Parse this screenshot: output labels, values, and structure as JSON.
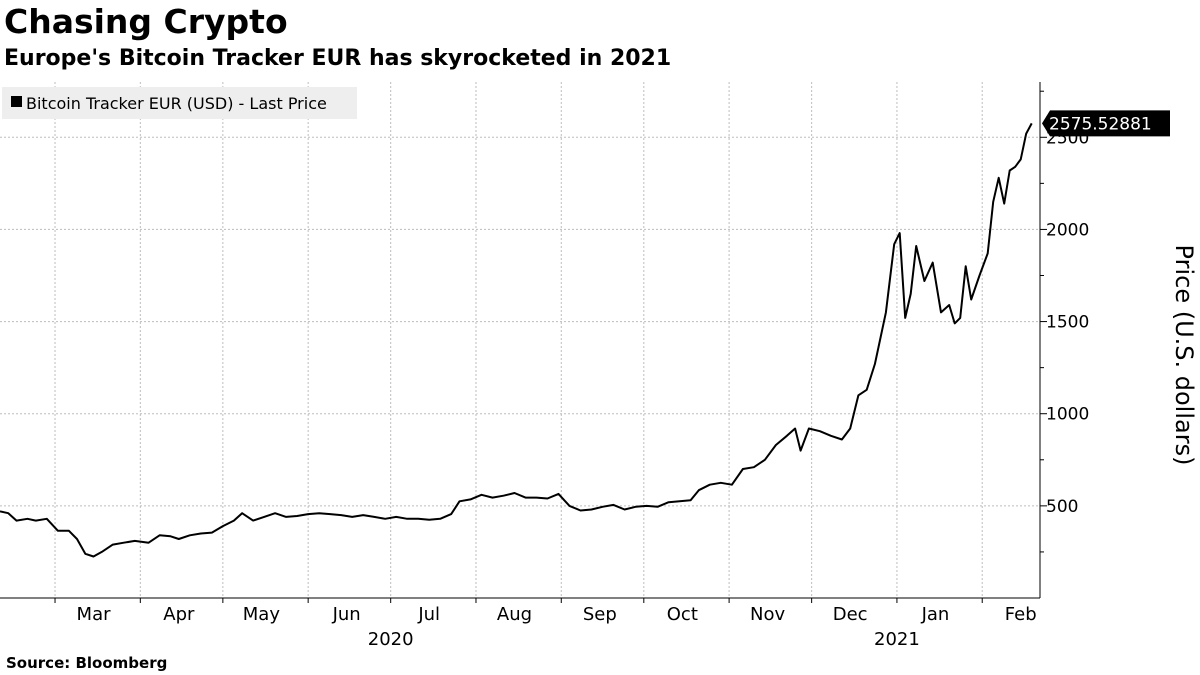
{
  "header": {
    "title": "Chasing Crypto",
    "subtitle": "Europe's Bitcoin Tracker EUR has skyrocketed in 2021"
  },
  "footer": {
    "source": "Source: Bloomberg"
  },
  "colors": {
    "line": "#000000",
    "grid": "#bdbdbd",
    "legend_bg": "#eeeeee",
    "last_price_badge": "#000000"
  },
  "chart_data": {
    "type": "line",
    "title": "",
    "xlabel": "",
    "ylabel": "Price (U.S. dollars)",
    "ylim": [
      0,
      2800
    ],
    "xlim": [
      "2020-02-10",
      "2021-02-22"
    ],
    "y_ticks": [
      500,
      1000,
      1500,
      2000,
      2500
    ],
    "x_tick_labels": [
      {
        "label": "Mar",
        "date": "2020-03-01"
      },
      {
        "label": "Apr",
        "date": "2020-04-01"
      },
      {
        "label": "May",
        "date": "2020-05-01"
      },
      {
        "label": "Jun",
        "date": "2020-06-01"
      },
      {
        "label": "Jul",
        "date": "2020-07-01"
      },
      {
        "label": "Aug",
        "date": "2020-08-01"
      },
      {
        "label": "Sep",
        "date": "2020-09-01"
      },
      {
        "label": "Oct",
        "date": "2020-10-01"
      },
      {
        "label": "Nov",
        "date": "2020-11-01"
      },
      {
        "label": "Dec",
        "date": "2020-12-01"
      },
      {
        "label": "Jan",
        "date": "2021-01-01"
      },
      {
        "label": "Feb",
        "date": "2021-02-01"
      }
    ],
    "year_labels": [
      {
        "label": "2020",
        "date": "2020-07-01"
      },
      {
        "label": "2021",
        "date": "2021-01-01"
      }
    ],
    "grid": true,
    "legend_position": "top-left",
    "last_price_label": "2575.52881",
    "series": [
      {
        "name": "Bitcoin Tracker EUR (USD) - Last Price",
        "color": "#000000",
        "points": [
          [
            "2020-02-10",
            470
          ],
          [
            "2020-02-13",
            460
          ],
          [
            "2020-02-16",
            420
          ],
          [
            "2020-02-20",
            430
          ],
          [
            "2020-02-23",
            420
          ],
          [
            "2020-02-27",
            430
          ],
          [
            "2020-03-02",
            365
          ],
          [
            "2020-03-06",
            365
          ],
          [
            "2020-03-09",
            320
          ],
          [
            "2020-03-12",
            240
          ],
          [
            "2020-03-15",
            225
          ],
          [
            "2020-03-18",
            250
          ],
          [
            "2020-03-22",
            290
          ],
          [
            "2020-03-26",
            300
          ],
          [
            "2020-03-30",
            310
          ],
          [
            "2020-04-04",
            300
          ],
          [
            "2020-04-08",
            340
          ],
          [
            "2020-04-12",
            335
          ],
          [
            "2020-04-15",
            320
          ],
          [
            "2020-04-19",
            340
          ],
          [
            "2020-04-23",
            350
          ],
          [
            "2020-04-27",
            355
          ],
          [
            "2020-05-01",
            390
          ],
          [
            "2020-05-05",
            420
          ],
          [
            "2020-05-08",
            460
          ],
          [
            "2020-05-12",
            420
          ],
          [
            "2020-05-16",
            440
          ],
          [
            "2020-05-20",
            460
          ],
          [
            "2020-05-24",
            440
          ],
          [
            "2020-05-28",
            445
          ],
          [
            "2020-06-01",
            455
          ],
          [
            "2020-06-05",
            460
          ],
          [
            "2020-06-09",
            455
          ],
          [
            "2020-06-13",
            450
          ],
          [
            "2020-06-17",
            440
          ],
          [
            "2020-06-21",
            450
          ],
          [
            "2020-06-25",
            440
          ],
          [
            "2020-06-29",
            430
          ],
          [
            "2020-07-03",
            440
          ],
          [
            "2020-07-07",
            430
          ],
          [
            "2020-07-11",
            430
          ],
          [
            "2020-07-15",
            425
          ],
          [
            "2020-07-19",
            430
          ],
          [
            "2020-07-23",
            455
          ],
          [
            "2020-07-26",
            525
          ],
          [
            "2020-07-30",
            535
          ],
          [
            "2020-08-03",
            560
          ],
          [
            "2020-08-07",
            545
          ],
          [
            "2020-08-11",
            555
          ],
          [
            "2020-08-15",
            570
          ],
          [
            "2020-08-19",
            545
          ],
          [
            "2020-08-23",
            545
          ],
          [
            "2020-08-27",
            540
          ],
          [
            "2020-08-31",
            565
          ],
          [
            "2020-09-04",
            500
          ],
          [
            "2020-09-08",
            475
          ],
          [
            "2020-09-12",
            480
          ],
          [
            "2020-09-16",
            495
          ],
          [
            "2020-09-20",
            505
          ],
          [
            "2020-09-24",
            480
          ],
          [
            "2020-09-28",
            495
          ],
          [
            "2020-10-02",
            500
          ],
          [
            "2020-10-06",
            495
          ],
          [
            "2020-10-10",
            520
          ],
          [
            "2020-10-14",
            525
          ],
          [
            "2020-10-18",
            530
          ],
          [
            "2020-10-21",
            585
          ],
          [
            "2020-10-25",
            615
          ],
          [
            "2020-10-29",
            625
          ],
          [
            "2020-11-02",
            615
          ],
          [
            "2020-11-06",
            700
          ],
          [
            "2020-11-10",
            710
          ],
          [
            "2020-11-14",
            750
          ],
          [
            "2020-11-18",
            830
          ],
          [
            "2020-11-22",
            880
          ],
          [
            "2020-11-25",
            920
          ],
          [
            "2020-11-27",
            800
          ],
          [
            "2020-11-30",
            920
          ],
          [
            "2020-12-04",
            905
          ],
          [
            "2020-12-08",
            880
          ],
          [
            "2020-12-12",
            860
          ],
          [
            "2020-12-15",
            920
          ],
          [
            "2020-12-18",
            1100
          ],
          [
            "2020-12-21",
            1130
          ],
          [
            "2020-12-24",
            1270
          ],
          [
            "2020-12-28",
            1550
          ],
          [
            "2020-12-31",
            1920
          ],
          [
            "2021-01-02",
            1980
          ],
          [
            "2021-01-04",
            1520
          ],
          [
            "2021-01-06",
            1650
          ],
          [
            "2021-01-08",
            1910
          ],
          [
            "2021-01-11",
            1720
          ],
          [
            "2021-01-14",
            1820
          ],
          [
            "2021-01-17",
            1550
          ],
          [
            "2021-01-20",
            1590
          ],
          [
            "2021-01-22",
            1490
          ],
          [
            "2021-01-24",
            1520
          ],
          [
            "2021-01-26",
            1800
          ],
          [
            "2021-01-28",
            1620
          ],
          [
            "2021-01-31",
            1750
          ],
          [
            "2021-02-03",
            1870
          ],
          [
            "2021-02-05",
            2150
          ],
          [
            "2021-02-07",
            2280
          ],
          [
            "2021-02-09",
            2140
          ],
          [
            "2021-02-11",
            2320
          ],
          [
            "2021-02-13",
            2340
          ],
          [
            "2021-02-15",
            2380
          ],
          [
            "2021-02-17",
            2520
          ],
          [
            "2021-02-19",
            2575.52881
          ]
        ]
      }
    ]
  }
}
